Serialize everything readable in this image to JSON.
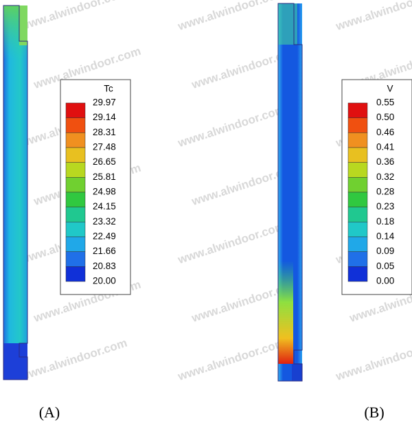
{
  "watermark": "www.alwindoor.com",
  "panels": [
    {
      "label": "(A)",
      "legend": {
        "title": "Tc",
        "labels": [
          "29.97",
          "29.14",
          "28.31",
          "27.48",
          "26.65",
          "25.81",
          "24.98",
          "24.15",
          "23.32",
          "22.49",
          "21.66",
          "20.83",
          "20.00"
        ]
      }
    },
    {
      "label": "(B)",
      "legend": {
        "title": "V",
        "labels": [
          "0.55",
          "0.50",
          "0.46",
          "0.41",
          "0.36",
          "0.32",
          "0.28",
          "0.23",
          "0.18",
          "0.14",
          "0.09",
          "0.05",
          "0.00"
        ]
      }
    }
  ]
}
